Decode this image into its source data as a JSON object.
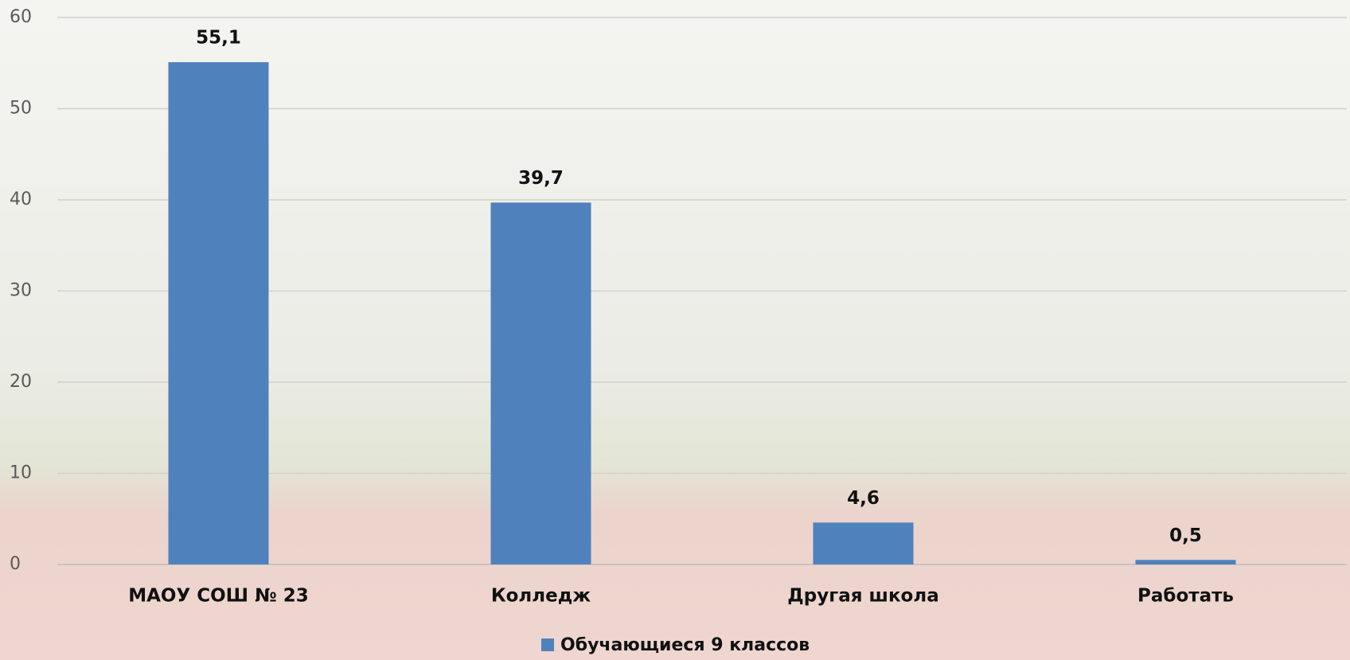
{
  "chart_data": {
    "type": "bar",
    "categories": [
      "МАОУ СОШ № 23",
      "Колледж",
      "Другая школа",
      "Работать"
    ],
    "series": [
      {
        "name": "Обучающиеся 9 классов",
        "color": "#4f81bd",
        "values": [
          55.1,
          39.7,
          4.6,
          0.5
        ],
        "value_labels": [
          "55,1",
          "39,7",
          "4,6",
          "0,5"
        ]
      }
    ],
    "ylim": [
      0,
      60
    ],
    "yticks": [
      0,
      10,
      20,
      30,
      40,
      50,
      60
    ],
    "grid": true
  }
}
